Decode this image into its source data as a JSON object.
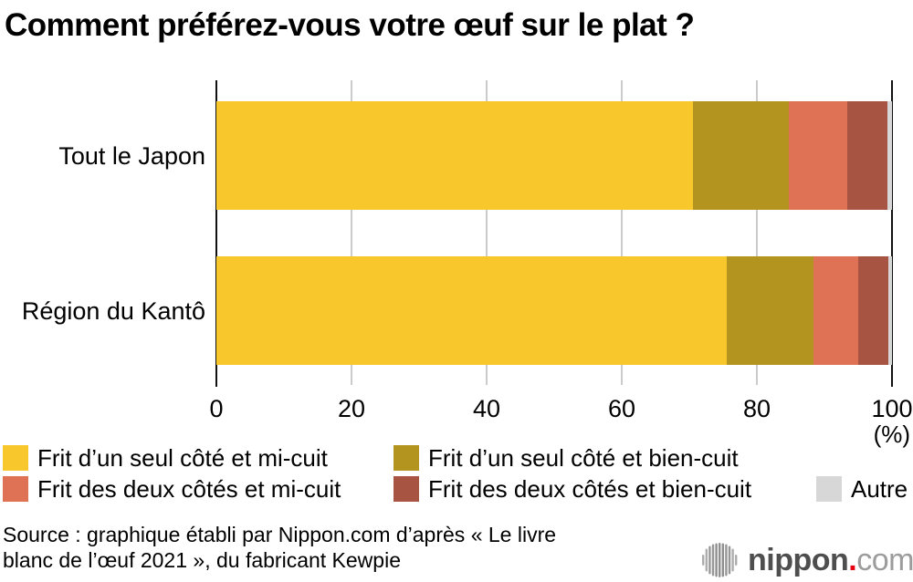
{
  "title": "Comment préférez-vous votre œuf sur le plat ?",
  "chart_data": {
    "type": "bar",
    "orientation": "horizontal",
    "stacked": true,
    "categories": [
      "Tout le Japon",
      "Région du Kantô"
    ],
    "series": [
      {
        "name": "Frit d’un seul côté et mi-cuit",
        "color": "#F8C72B",
        "values": [
          70.5,
          75.6
        ]
      },
      {
        "name": "Frit d’un seul côté et bien-cuit",
        "color": "#B3941E",
        "values": [
          14.2,
          12.8
        ]
      },
      {
        "name": "Frit des deux côtés et mi-cuit",
        "color": "#DF7155",
        "values": [
          8.7,
          6.6
        ]
      },
      {
        "name": "Frit des deux côtés et bien-cuit",
        "color": "#A85442",
        "values": [
          5.9,
          4.4
        ]
      },
      {
        "name": "Autre",
        "color": "#D7D7D7",
        "values": [
          0.7,
          0.6
        ]
      }
    ],
    "xlim": [
      0,
      100
    ],
    "xticks": [
      0,
      20,
      40,
      60,
      80,
      100
    ],
    "unit_label": "(%)",
    "grid": "vertical-gridlines",
    "legend_position": "bottom",
    "axis_color": "#111111",
    "gridline_color": "#cbcbcb"
  },
  "source": {
    "line1": "Source : graphique établi par Nippon.com d’après « Le livre",
    "line2": "blanc de l’œuf 2021 », du fabricant Kewpie"
  },
  "logo": {
    "name": "nippon",
    "dot": ".",
    "suffix": "com"
  }
}
